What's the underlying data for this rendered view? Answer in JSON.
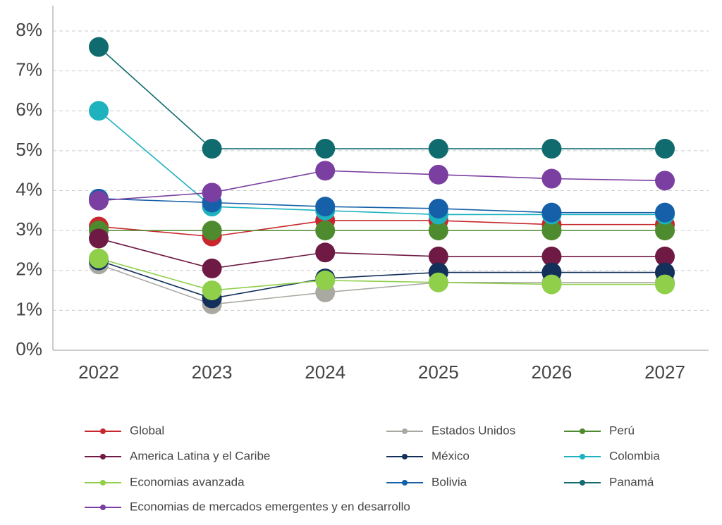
{
  "chart_data": {
    "type": "line",
    "categories": [
      "2022",
      "2023",
      "2024",
      "2025",
      "2026",
      "2027"
    ],
    "ylim": [
      0,
      8
    ],
    "yticks": [
      {
        "value": 0,
        "label": "0%"
      },
      {
        "value": 1,
        "label": "1%"
      },
      {
        "value": 2,
        "label": "2%"
      },
      {
        "value": 3,
        "label": "3%"
      },
      {
        "value": 4,
        "label": "4%"
      },
      {
        "value": 5,
        "label": "5%"
      },
      {
        "value": 6,
        "label": "6%"
      },
      {
        "value": 7,
        "label": "7%"
      },
      {
        "value": 8,
        "label": "8%"
      }
    ],
    "grid": true,
    "series": [
      {
        "name": "Global",
        "color": "#c8282d",
        "values": [
          3.1,
          2.85,
          3.25,
          3.25,
          3.15,
          3.15
        ]
      },
      {
        "name": "Estados Unidos",
        "color": "#a9a9a2",
        "values": [
          2.15,
          1.15,
          1.45,
          1.7,
          1.7,
          1.7
        ]
      },
      {
        "name": "Perú",
        "color": "#4e8a2e",
        "values": [
          3.0,
          3.0,
          3.0,
          3.0,
          3.0,
          3.0
        ]
      },
      {
        "name": "America Latina y el Caribe",
        "color": "#6e1a44",
        "values": [
          2.8,
          2.05,
          2.45,
          2.35,
          2.35,
          2.35
        ]
      },
      {
        "name": "México",
        "color": "#12305a",
        "values": [
          2.25,
          1.3,
          1.8,
          1.95,
          1.95,
          1.95
        ]
      },
      {
        "name": "Colombia",
        "color": "#1eb2bf",
        "values": [
          6.0,
          3.6,
          3.5,
          3.4,
          3.4,
          3.4
        ]
      },
      {
        "name": "Economias avanzada",
        "color": "#8fcf4a",
        "values": [
          2.3,
          1.5,
          1.75,
          1.7,
          1.65,
          1.65
        ]
      },
      {
        "name": "Bolivia",
        "color": "#1560a8",
        "values": [
          3.8,
          3.7,
          3.6,
          3.55,
          3.45,
          3.45
        ]
      },
      {
        "name": "Panamá",
        "color": "#0f6b6e",
        "values": [
          7.6,
          5.05,
          5.05,
          5.05,
          5.05,
          5.05
        ]
      },
      {
        "name": "Economias de mercados emergentes y en desarrollo",
        "color": "#7a3fa0",
        "values": [
          3.75,
          3.95,
          4.5,
          4.4,
          4.3,
          4.25
        ]
      }
    ]
  }
}
